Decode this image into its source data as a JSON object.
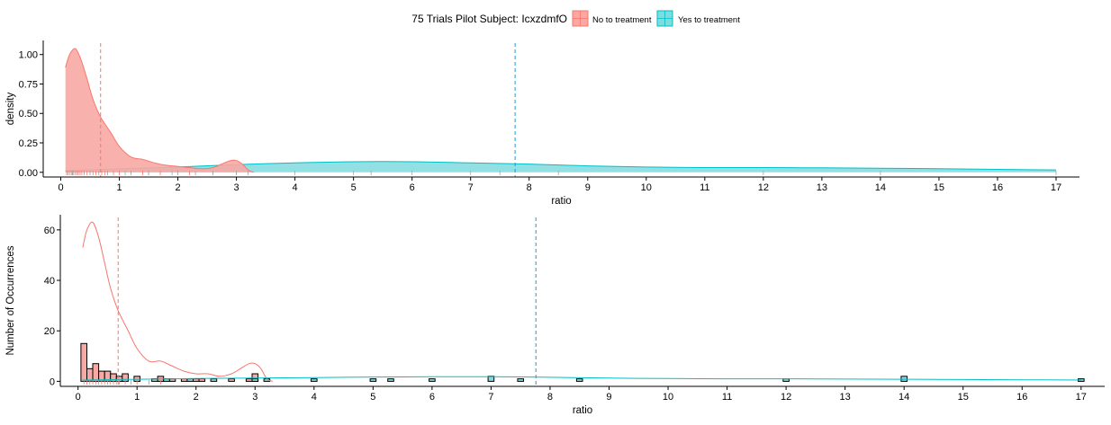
{
  "legend": {
    "title": "75 Trials Pilot Subject:  IcxzdmfO",
    "items": [
      {
        "label": "No to treatment",
        "color": "#F8766D"
      },
      {
        "label": "Yes to treatment",
        "color": "#00BFC4"
      }
    ]
  },
  "colors": {
    "no": "#F8766D",
    "yes": "#00BFC4",
    "no_fill": "#F8A9A4",
    "yes_fill": "#7FDBDE",
    "axis": "#000000"
  },
  "chart_data": [
    {
      "type": "area",
      "title": "",
      "xlabel": "ratio",
      "ylabel": "density",
      "xlim": [
        -0.3,
        17.4
      ],
      "ylim": [
        -0.04,
        1.12
      ],
      "xticks": [
        "0",
        "1",
        "2",
        "3",
        "4",
        "5",
        "6",
        "7",
        "8",
        "9",
        "10",
        "11",
        "12",
        "13",
        "14",
        "15",
        "16",
        "17"
      ],
      "yticks": [
        "0.00",
        "0.25",
        "0.50",
        "0.75",
        "1.00"
      ],
      "vlines": [
        {
          "series": "No to treatment",
          "x": 0.68
        },
        {
          "series": "Yes to treatment",
          "x": 7.76
        }
      ],
      "series": [
        {
          "name": "No to treatment",
          "x": [
            0.08,
            0.15,
            0.25,
            0.35,
            0.45,
            0.55,
            0.68,
            0.85,
            1.0,
            1.2,
            1.4,
            1.6,
            1.8,
            2.0,
            2.2,
            2.4,
            2.6,
            2.75,
            2.9,
            3.0,
            3.1,
            3.2,
            3.3
          ],
          "y": [
            0.89,
            1.0,
            1.05,
            0.95,
            0.79,
            0.62,
            0.47,
            0.34,
            0.22,
            0.13,
            0.11,
            0.08,
            0.06,
            0.05,
            0.04,
            0.03,
            0.04,
            0.07,
            0.1,
            0.1,
            0.07,
            0.02,
            0.0
          ]
        },
        {
          "name": "Yes to treatment",
          "x": [
            0.08,
            1,
            2,
            3,
            4,
            5,
            6,
            7,
            8,
            9,
            10,
            11,
            12,
            13,
            14,
            15,
            16,
            17
          ],
          "y": [
            0.015,
            0.03,
            0.045,
            0.065,
            0.08,
            0.09,
            0.09,
            0.08,
            0.07,
            0.055,
            0.045,
            0.04,
            0.04,
            0.038,
            0.035,
            0.03,
            0.025,
            0.02
          ]
        }
      ],
      "rug": {
        "No to treatment": [
          0.1,
          0.12,
          0.15,
          0.18,
          0.2,
          0.22,
          0.25,
          0.28,
          0.3,
          0.33,
          0.36,
          0.4,
          0.45,
          0.5,
          0.55,
          0.6,
          0.65,
          0.7,
          0.75,
          0.8,
          0.9,
          1.0,
          1.2,
          1.4,
          1.5,
          1.7,
          2.0,
          2.2,
          2.6,
          3.0
        ],
        "Yes to treatment": [
          0.2,
          0.5,
          1.1,
          1.5,
          1.9,
          2.3,
          2.6,
          3.0,
          3.2,
          4.0,
          5.0,
          5.3,
          6.0,
          7.0,
          7.5,
          8.5,
          12.0,
          14.0,
          17.0
        ]
      }
    },
    {
      "type": "bar",
      "title": "",
      "xlabel": "ratio",
      "ylabel": "Number of Occurrences",
      "xlim": [
        -0.3,
        17.4
      ],
      "ylim": [
        -2,
        66
      ],
      "xticks": [
        "0",
        "1",
        "2",
        "3",
        "4",
        "5",
        "6",
        "7",
        "8",
        "9",
        "10",
        "11",
        "12",
        "13",
        "14",
        "15",
        "16",
        "17"
      ],
      "yticks": [
        "0",
        "20",
        "40",
        "60"
      ],
      "vlines": [
        {
          "series": "No to treatment",
          "x": 0.68
        },
        {
          "series": "Yes to treatment",
          "x": 7.76
        }
      ],
      "bin_width": 0.1,
      "series": [
        {
          "name": "No to treatment",
          "bins": [
            0.1,
            0.2,
            0.3,
            0.4,
            0.5,
            0.6,
            0.7,
            0.8,
            1.0,
            1.3,
            1.4,
            1.6,
            1.8,
            2.0,
            2.1,
            2.6,
            2.9,
            3.0
          ],
          "values": [
            15,
            5,
            7,
            4,
            4,
            3,
            2,
            3,
            2,
            1,
            2,
            1,
            1,
            1,
            1,
            1,
            1,
            3
          ]
        },
        {
          "name": "Yes to treatment",
          "bins": [
            1.5,
            1.9,
            2.3,
            3.0,
            3.2,
            4.0,
            5.0,
            5.3,
            6.0,
            7.0,
            7.5,
            8.5,
            12.0,
            14.0,
            17.0
          ],
          "values": [
            1,
            1,
            1,
            1,
            1,
            1,
            1,
            1,
            1,
            2,
            1,
            1,
            1,
            2,
            1
          ]
        }
      ],
      "curves": [
        {
          "name": "No to treatment",
          "x": [
            0.08,
            0.15,
            0.25,
            0.35,
            0.45,
            0.55,
            0.68,
            0.85,
            1.0,
            1.2,
            1.4,
            1.6,
            1.8,
            2.0,
            2.2,
            2.4,
            2.6,
            2.75,
            2.9,
            3.0,
            3.1,
            3.2,
            3.3
          ],
          "y": [
            53,
            60,
            63,
            57,
            47,
            37,
            28,
            20,
            13,
            8,
            8,
            6,
            4,
            3,
            3,
            2,
            3,
            5,
            7,
            7,
            5,
            1,
            0
          ]
        },
        {
          "name": "Yes to treatment",
          "x": [
            0.08,
            1,
            2,
            3,
            4,
            5,
            6,
            7,
            8,
            9,
            10,
            11,
            12,
            13,
            14,
            15,
            16,
            17
          ],
          "y": [
            0.5,
            0.8,
            1.1,
            1.3,
            1.5,
            1.7,
            1.8,
            1.8,
            1.6,
            1.3,
            1.1,
            1.0,
            1.0,
            0.9,
            0.8,
            0.7,
            0.6,
            0.5
          ]
        }
      ]
    }
  ]
}
